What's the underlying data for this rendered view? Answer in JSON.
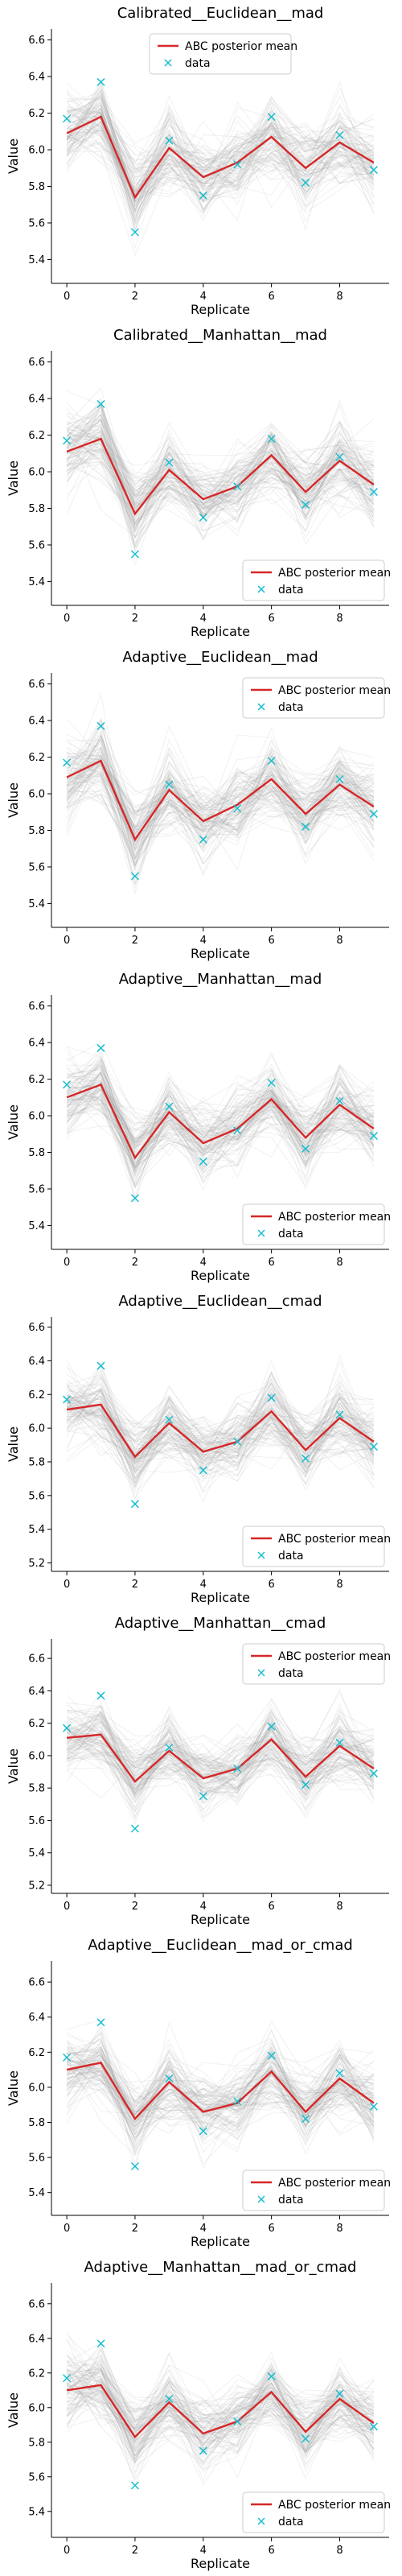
{
  "colors": {
    "mean": "#d62728",
    "data": "#17becf",
    "sim": "#9a9a9a"
  },
  "legend": {
    "mean_label": "ABC posterior mean",
    "data_label": "data"
  },
  "chart_data": [
    {
      "type": "line",
      "title": "Calibrated__Euclidean__mad",
      "xlabel": "Replicate",
      "ylabel": "Value",
      "x": [
        0,
        1,
        2,
        3,
        4,
        5,
        6,
        7,
        8,
        9
      ],
      "xticks": [
        0,
        2,
        4,
        6,
        8
      ],
      "yticks": [
        5.4,
        5.6,
        5.8,
        6.0,
        6.2,
        6.4,
        6.6
      ],
      "xlim": [
        -0.45,
        9.45
      ],
      "ylim": [
        5.27,
        6.66
      ],
      "legend_position": "upper-center",
      "series": [
        {
          "name": "ABC posterior mean",
          "style": "line",
          "values": [
            6.09,
            6.18,
            5.74,
            6.01,
            5.85,
            5.93,
            6.07,
            5.9,
            6.04,
            5.93
          ]
        },
        {
          "name": "data",
          "style": "marker-x",
          "values": [
            6.17,
            6.37,
            5.55,
            6.05,
            5.75,
            5.92,
            6.18,
            5.82,
            6.08,
            5.89
          ]
        }
      ]
    },
    {
      "type": "line",
      "title": "Calibrated__Manhattan__mad",
      "xlabel": "Replicate",
      "ylabel": "Value",
      "x": [
        0,
        1,
        2,
        3,
        4,
        5,
        6,
        7,
        8,
        9
      ],
      "xticks": [
        0,
        2,
        4,
        6,
        8
      ],
      "yticks": [
        5.4,
        5.6,
        5.8,
        6.0,
        6.2,
        6.4,
        6.6
      ],
      "xlim": [
        -0.45,
        9.45
      ],
      "ylim": [
        5.27,
        6.66
      ],
      "legend_position": "lower-right",
      "series": [
        {
          "name": "ABC posterior mean",
          "style": "line",
          "values": [
            6.11,
            6.18,
            5.77,
            6.01,
            5.85,
            5.92,
            6.09,
            5.89,
            6.06,
            5.93
          ]
        },
        {
          "name": "data",
          "style": "marker-x",
          "values": [
            6.17,
            6.37,
            5.55,
            6.05,
            5.75,
            5.92,
            6.18,
            5.82,
            6.08,
            5.89
          ]
        }
      ]
    },
    {
      "type": "line",
      "title": "Adaptive__Euclidean__mad",
      "xlabel": "Replicate",
      "ylabel": "Value",
      "x": [
        0,
        1,
        2,
        3,
        4,
        5,
        6,
        7,
        8,
        9
      ],
      "xticks": [
        0,
        2,
        4,
        6,
        8
      ],
      "yticks": [
        5.4,
        5.6,
        5.8,
        6.0,
        6.2,
        6.4,
        6.6
      ],
      "xlim": [
        -0.45,
        9.45
      ],
      "ylim": [
        5.27,
        6.66
      ],
      "legend_position": "upper-right",
      "series": [
        {
          "name": "ABC posterior mean",
          "style": "line",
          "values": [
            6.09,
            6.18,
            5.75,
            6.02,
            5.85,
            5.94,
            6.08,
            5.89,
            6.05,
            5.93
          ]
        },
        {
          "name": "data",
          "style": "marker-x",
          "values": [
            6.17,
            6.37,
            5.55,
            6.05,
            5.75,
            5.92,
            6.18,
            5.82,
            6.08,
            5.89
          ]
        }
      ]
    },
    {
      "type": "line",
      "title": "Adaptive__Manhattan__mad",
      "xlabel": "Replicate",
      "ylabel": "Value",
      "x": [
        0,
        1,
        2,
        3,
        4,
        5,
        6,
        7,
        8,
        9
      ],
      "xticks": [
        0,
        2,
        4,
        6,
        8
      ],
      "yticks": [
        5.4,
        5.6,
        5.8,
        6.0,
        6.2,
        6.4,
        6.6
      ],
      "xlim": [
        -0.45,
        9.45
      ],
      "ylim": [
        5.27,
        6.66
      ],
      "legend_position": "lower-right",
      "series": [
        {
          "name": "ABC posterior mean",
          "style": "line",
          "values": [
            6.1,
            6.17,
            5.77,
            6.02,
            5.85,
            5.93,
            6.09,
            5.88,
            6.06,
            5.93
          ]
        },
        {
          "name": "data",
          "style": "marker-x",
          "values": [
            6.17,
            6.37,
            5.55,
            6.05,
            5.75,
            5.92,
            6.18,
            5.82,
            6.08,
            5.89
          ]
        }
      ]
    },
    {
      "type": "line",
      "title": "Adaptive__Euclidean__cmad",
      "xlabel": "Replicate",
      "ylabel": "Value",
      "x": [
        0,
        1,
        2,
        3,
        4,
        5,
        6,
        7,
        8,
        9
      ],
      "xticks": [
        0,
        2,
        4,
        6,
        8
      ],
      "yticks": [
        5.2,
        5.4,
        5.6,
        5.8,
        6.0,
        6.2,
        6.4,
        6.6
      ],
      "xlim": [
        -0.45,
        9.45
      ],
      "ylim": [
        5.15,
        6.66
      ],
      "legend_position": "lower-right",
      "series": [
        {
          "name": "ABC posterior mean",
          "style": "line",
          "values": [
            6.11,
            6.14,
            5.83,
            6.03,
            5.86,
            5.92,
            6.1,
            5.87,
            6.06,
            5.92
          ]
        },
        {
          "name": "data",
          "style": "marker-x",
          "values": [
            6.17,
            6.37,
            5.55,
            6.05,
            5.75,
            5.92,
            6.18,
            5.82,
            6.08,
            5.89
          ]
        }
      ]
    },
    {
      "type": "line",
      "title": "Adaptive__Manhattan__cmad",
      "xlabel": "Replicate",
      "ylabel": "Value",
      "x": [
        0,
        1,
        2,
        3,
        4,
        5,
        6,
        7,
        8,
        9
      ],
      "xticks": [
        0,
        2,
        4,
        6,
        8
      ],
      "yticks": [
        5.2,
        5.4,
        5.6,
        5.8,
        6.0,
        6.2,
        6.4,
        6.6
      ],
      "xlim": [
        -0.45,
        9.45
      ],
      "ylim": [
        5.15,
        6.72
      ],
      "legend_position": "upper-right",
      "series": [
        {
          "name": "ABC posterior mean",
          "style": "line",
          "values": [
            6.11,
            6.13,
            5.84,
            6.03,
            5.86,
            5.92,
            6.1,
            5.87,
            6.06,
            5.92
          ]
        },
        {
          "name": "data",
          "style": "marker-x",
          "values": [
            6.17,
            6.37,
            5.55,
            6.05,
            5.75,
            5.92,
            6.18,
            5.82,
            6.08,
            5.89
          ]
        }
      ]
    },
    {
      "type": "line",
      "title": "Adaptive__Euclidean__mad_or_cmad",
      "xlabel": "Replicate",
      "ylabel": "Value",
      "x": [
        0,
        1,
        2,
        3,
        4,
        5,
        6,
        7,
        8,
        9
      ],
      "xticks": [
        0,
        2,
        4,
        6,
        8
      ],
      "yticks": [
        5.4,
        5.6,
        5.8,
        6.0,
        6.2,
        6.4,
        6.6
      ],
      "xlim": [
        -0.45,
        9.45
      ],
      "ylim": [
        5.27,
        6.72
      ],
      "legend_position": "lower-right",
      "series": [
        {
          "name": "ABC posterior mean",
          "style": "line",
          "values": [
            6.1,
            6.14,
            5.82,
            6.03,
            5.86,
            5.91,
            6.09,
            5.86,
            6.05,
            5.91
          ]
        },
        {
          "name": "data",
          "style": "marker-x",
          "values": [
            6.17,
            6.37,
            5.55,
            6.05,
            5.75,
            5.92,
            6.18,
            5.82,
            6.08,
            5.89
          ]
        }
      ]
    },
    {
      "type": "line",
      "title": "Adaptive__Manhattan__mad_or_cmad",
      "xlabel": "Replicate",
      "ylabel": "Value",
      "x": [
        0,
        1,
        2,
        3,
        4,
        5,
        6,
        7,
        8,
        9
      ],
      "xticks": [
        0,
        2,
        4,
        6,
        8
      ],
      "yticks": [
        5.4,
        5.6,
        5.8,
        6.0,
        6.2,
        6.4,
        6.6
      ],
      "xlim": [
        -0.45,
        9.45
      ],
      "ylim": [
        5.25,
        6.72
      ],
      "legend_position": "lower-right",
      "series": [
        {
          "name": "ABC posterior mean",
          "style": "line",
          "values": [
            6.1,
            6.13,
            5.83,
            6.03,
            5.85,
            5.92,
            6.09,
            5.86,
            6.05,
            5.91
          ]
        },
        {
          "name": "data",
          "style": "marker-x",
          "values": [
            6.17,
            6.37,
            5.55,
            6.05,
            5.75,
            5.92,
            6.18,
            5.82,
            6.08,
            5.89
          ]
        }
      ]
    }
  ]
}
